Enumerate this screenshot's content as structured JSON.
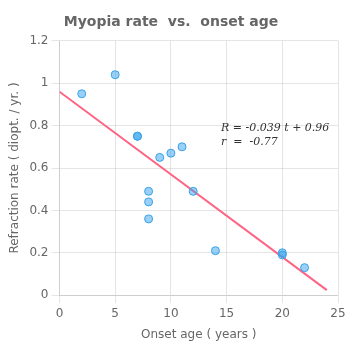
{
  "chart_data": {
    "type": "scatter",
    "title": "Myopia rate  vs.  onset age",
    "xlabel": "Onset age ( years )",
    "ylabel": "Refraction rate ( diopt. / yr. )",
    "series": [
      {
        "type": "scatter",
        "x": [
          2,
          5,
          7,
          7,
          8,
          8,
          8,
          9,
          10,
          11,
          12,
          14,
          20,
          20,
          22
        ],
        "values": [
          0.95,
          1.04,
          0.75,
          0.75,
          0.49,
          0.44,
          0.36,
          0.65,
          0.67,
          0.7,
          0.49,
          0.21,
          0.2,
          0.19,
          0.13
        ]
      },
      {
        "type": "line",
        "x": [
          0,
          24
        ],
        "values": [
          0.96,
          0.024
        ]
      }
    ],
    "annotations": [
      "R = -0.039 t + 0.96",
      "r  =  -0.77"
    ],
    "xlim": [
      0,
      25
    ],
    "ylim": [
      0,
      1.2
    ],
    "xticks": [
      0,
      5,
      10,
      15,
      20,
      25
    ],
    "yticks": [
      0,
      0.2,
      0.4,
      0.6,
      0.8,
      1.0,
      1.2
    ],
    "grid": true
  }
}
